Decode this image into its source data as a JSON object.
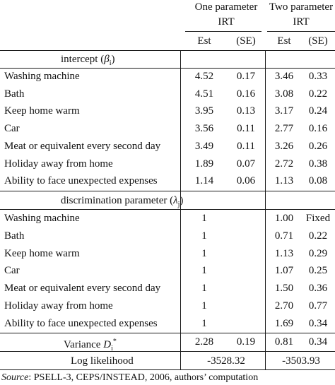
{
  "header": {
    "model1_line1": "One parameter",
    "model1_line2": "IRT",
    "model2_line1": "Two parameter",
    "model2_line2": "IRT",
    "est": "Est",
    "se": "(SE)"
  },
  "section_intercept": {
    "title": "intercept (",
    "symbol": "β",
    "sub": "i",
    "close": ")"
  },
  "intercept_rows": [
    {
      "label": "Washing machine",
      "est1": "4.52",
      "se1": "0.17",
      "est2": "3.46",
      "se2": "0.33"
    },
    {
      "label": "Bath",
      "est1": "4.51",
      "se1": "0.16",
      "est2": "3.08",
      "se2": "0.22"
    },
    {
      "label": "Keep home warm",
      "est1": "3.95",
      "se1": "0.13",
      "est2": "3.17",
      "se2": "0.24"
    },
    {
      "label": "Car",
      "est1": "3.56",
      "se1": "0.11",
      "est2": "2.77",
      "se2": "0.16"
    },
    {
      "label": "Meat or equivalent every second day",
      "est1": "3.49",
      "se1": "0.11",
      "est2": "3.26",
      "se2": "0.26"
    },
    {
      "label": "Holiday away from home",
      "est1": "1.89",
      "se1": "0.07",
      "est2": "2.72",
      "se2": "0.38"
    },
    {
      "label": "Ability to face unexpected expenses",
      "est1": "1.14",
      "se1": "0.06",
      "est2": "1.13",
      "se2": "0.08"
    }
  ],
  "section_discrimination": {
    "title": "discrimination parameter (",
    "symbol": "λ",
    "sub": "j",
    "close": ")"
  },
  "discrimination_rows": [
    {
      "label": "Washing machine",
      "est1": "1",
      "se1": "",
      "est2": "1.00",
      "se2": "Fixed"
    },
    {
      "label": "Bath",
      "est1": "1",
      "se1": "",
      "est2": "0.71",
      "se2": "0.22"
    },
    {
      "label": "Keep home warm",
      "est1": "1",
      "se1": "",
      "est2": "1.13",
      "se2": "0.29"
    },
    {
      "label": "Car",
      "est1": "1",
      "se1": "",
      "est2": "1.07",
      "se2": "0.25"
    },
    {
      "label": "Meat or equivalent every second day",
      "est1": "1",
      "se1": "",
      "est2": "1.50",
      "se2": "0.36"
    },
    {
      "label": "Holiday away from home",
      "est1": "1",
      "se1": "",
      "est2": "2.70",
      "se2": "0.77"
    },
    {
      "label": "Ability to face unexpected expenses",
      "est1": "1",
      "se1": "",
      "est2": "1.69",
      "se2": "0.34"
    }
  ],
  "variance": {
    "label": "Variance ",
    "symbol": "D",
    "sub": "i",
    "sup": "*",
    "est1": "2.28",
    "se1": "0.19",
    "est2": "0.81",
    "se2": "0.34"
  },
  "loglik": {
    "label": "Log likelihood",
    "value1": "-3528.32",
    "value2": "-3503.93"
  },
  "source": {
    "prefix": "Source",
    "text": ": PSELL-3, CEPS/INSTEAD, 2006, authors’ computation"
  }
}
